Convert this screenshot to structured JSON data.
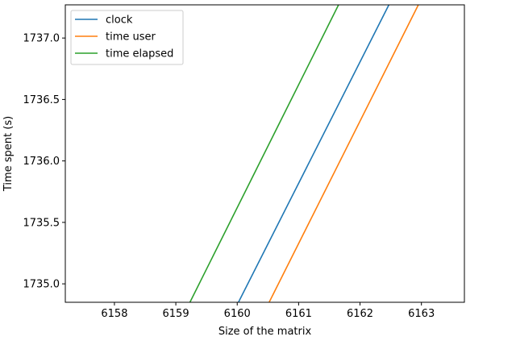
{
  "chart_data": {
    "type": "line",
    "title": "",
    "xlabel": "Size of the matrix",
    "ylabel": "Time spent (s)",
    "xlim": [
      6157.2,
      6163.7
    ],
    "ylim": [
      1734.85,
      1737.27
    ],
    "xticks": [
      6158,
      6159,
      6160,
      6161,
      6162,
      6163
    ],
    "yticks": [
      1735.0,
      1735.5,
      1736.0,
      1736.5,
      1737.0
    ],
    "xtick_labels": [
      "6158",
      "6159",
      "6160",
      "6161",
      "6162",
      "6163"
    ],
    "ytick_labels": [
      "1735.0",
      "1735.5",
      "1736.0",
      "1736.5",
      "1737.0"
    ],
    "legend_position": "top-left",
    "grid": false,
    "series": [
      {
        "name": "clock",
        "color": "#1f77b4",
        "x": [
          6160.02,
          6162.47
        ],
        "y": [
          1734.85,
          1737.27
        ]
      },
      {
        "name": "time user",
        "color": "#ff7f0e",
        "x": [
          6160.52,
          6162.95
        ],
        "y": [
          1734.85,
          1737.27
        ]
      },
      {
        "name": "time elapsed",
        "color": "#2ca02c",
        "x": [
          6159.23,
          6161.65
        ],
        "y": [
          1734.85,
          1737.27
        ]
      }
    ]
  }
}
